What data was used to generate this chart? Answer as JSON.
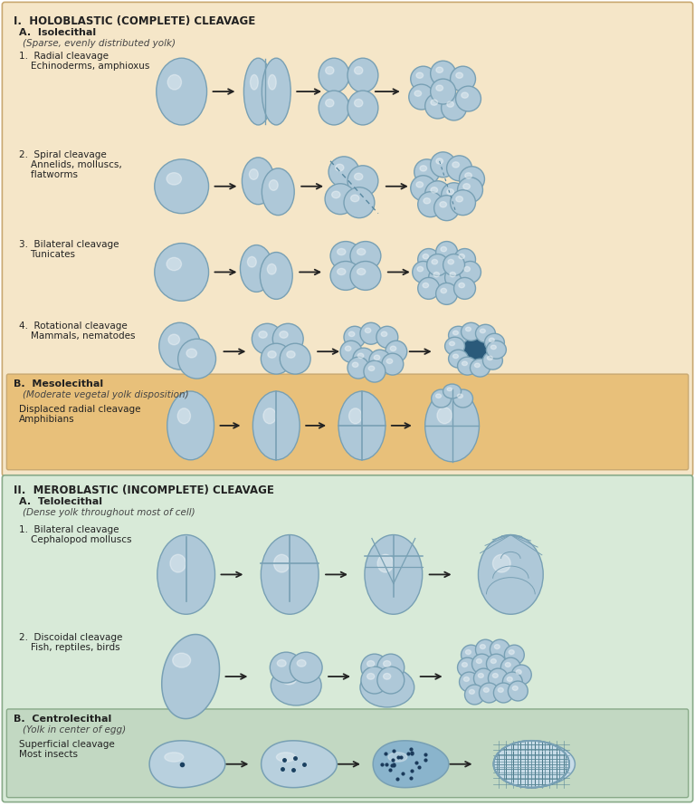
{
  "bg_color_top": "#f5e6c8",
  "bg_color_meso": "#e8c07a",
  "bg_color_mero": "#d8ead8",
  "bg_color_centro": "#c2d8c2",
  "cell_fill": "#aec8d8",
  "cell_edge": "#78a0b4",
  "cell_hl": "#d8eaf4",
  "dark_blue": "#2a5872",
  "arrow_color": "#222222",
  "text_dark": "#222222",
  "title1": "I.  HOLOBLASTIC (COMPLETE) CLEAVAGE",
  "title2": "II.  MEROBLASTIC (INCOMPLETE) CLEAVAGE",
  "secA_iso": "A.  Isolecithal",
  "secA_iso_sub": "(Sparse, evenly distributed yolk)",
  "r1_label1": "1.  Radial cleavage",
  "r1_label2": "    Echinoderms, amphioxus",
  "r2_label1": "2.  Spiral cleavage",
  "r2_label2": "    Annelids, molluscs,",
  "r2_label3": "    flatworms",
  "r3_label1": "3.  Bilateral cleavage",
  "r3_label2": "    Tunicates",
  "r4_label1": "4.  Rotational cleavage",
  "r4_label2": "    Mammals, nematodes",
  "secB_meso": "B.  Mesolecithal",
  "secB_meso_sub": "(Moderate vegetal yolk disposition)",
  "meso_label1": "Displaced radial cleavage",
  "meso_label2": "Amphibians",
  "secA_telo": "A.  Telolecithal",
  "secA_telo_sub": "(Dense yolk throughout most of cell)",
  "t1_label1": "1.  Bilateral cleavage",
  "t1_label2": "    Cephalopod molluscs",
  "t2_label1": "2.  Discoidal cleavage",
  "t2_label2": "    Fish, reptiles, birds",
  "secB_centro": "B.  Centrolecithal",
  "secB_centro_sub": "(Yolk in center of egg)",
  "centro_label1": "Superficial cleavage",
  "centro_label2": "Most insects"
}
